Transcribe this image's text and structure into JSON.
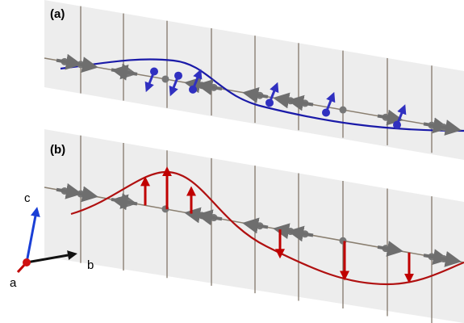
{
  "panels": {
    "a": "(a)",
    "b": "(b)"
  },
  "axes": {
    "c": "c",
    "b": "b",
    "a": "a"
  }
}
